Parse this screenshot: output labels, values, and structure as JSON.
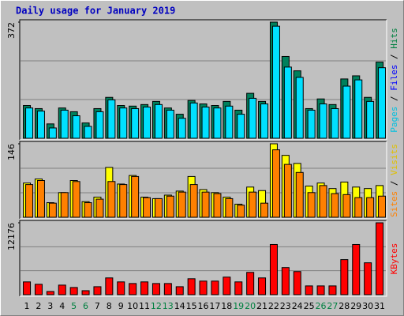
{
  "chart_data": {
    "type": "bar",
    "title": "Daily usage for January 2019",
    "categories": [
      "1",
      "2",
      "3",
      "4",
      "5",
      "6",
      "7",
      "8",
      "9",
      "10",
      "11",
      "12",
      "13",
      "14",
      "15",
      "16",
      "17",
      "18",
      "19",
      "20",
      "21",
      "22",
      "23",
      "24",
      "25",
      "26",
      "27",
      "28",
      "29",
      "30",
      "31"
    ],
    "weekend": [
      4,
      5,
      11,
      12,
      18,
      19,
      25,
      26
    ],
    "weekend_color": "#008040",
    "panels": [
      {
        "ylim": [
          0,
          372
        ],
        "yticks": [
          372
        ],
        "side_label": [
          {
            "text": "Pages",
            "color": "#00c0e0"
          },
          {
            "text": " / ",
            "color": "#000000"
          },
          {
            "text": "Files",
            "color": "#0000ff"
          },
          {
            "text": " / ",
            "color": "#000000"
          },
          {
            "text": "Hits",
            "color": "#008040"
          }
        ],
        "series": [
          {
            "name": "Hits",
            "color": "#00805c",
            "values": [
              105,
              95,
              46,
              97,
              85,
              49,
              95,
              131,
              105,
              103,
              108,
              118,
              97,
              77,
              121,
              110,
              105,
              118,
              90,
              144,
              118,
              372,
              262,
              216,
              95,
              126,
              108,
              190,
              200,
              131,
              244
            ]
          },
          {
            "name": "Pages",
            "color": "#00e0ff",
            "values": [
              97,
              87,
              33,
              90,
              72,
              38,
              85,
              123,
              97,
              95,
              100,
              108,
              90,
              64,
              113,
              100,
              97,
              103,
              77,
              128,
              110,
              359,
              228,
              195,
              90,
              110,
              95,
              167,
              187,
              118,
              226
            ]
          }
        ]
      },
      {
        "ylim": [
          0,
          146
        ],
        "yticks": [
          146
        ],
        "side_label": [
          {
            "text": "Sites",
            "color": "#ff8000"
          },
          {
            "text": " / ",
            "color": "#000000"
          },
          {
            "text": "Visits",
            "color": "#e0c000"
          }
        ],
        "series": [
          {
            "name": "Visits",
            "color": "#ffff00",
            "values": [
              68,
              76,
              29,
              49,
              73,
              31,
              40,
              99,
              66,
              83,
              40,
              37,
              44,
              52,
              81,
              55,
              49,
              40,
              26,
              60,
              53,
              146,
              123,
              107,
              62,
              68,
              57,
              70,
              60,
              57,
              63
            ]
          },
          {
            "name": "Sites",
            "color": "#ff8000",
            "values": [
              65,
              73,
              28,
              49,
              71,
              29,
              36,
              71,
              65,
              81,
              39,
              37,
              42,
              50,
              65,
              50,
              47,
              37,
              24,
              50,
              28,
              134,
              105,
              89,
              49,
              63,
              47,
              45,
              39,
              39,
              42
            ]
          }
        ]
      },
      {
        "ylim": [
          0,
          12176
        ],
        "yticks": [
          12176
        ],
        "side_label": [
          {
            "text": "KBytes",
            "color": "#ff0000"
          }
        ],
        "series": [
          {
            "name": "KBytes",
            "color": "#ff0000",
            "values": [
              2165,
              1760,
              540,
              1620,
              1215,
              675,
              1350,
              2840,
              2165,
              1890,
              2165,
              1890,
              1890,
              1350,
              2700,
              2300,
              2300,
              2975,
              2165,
              3780,
              2840,
              8500,
              4590,
              3915,
              1485,
              1485,
              1485,
              5940,
              8500,
              5400,
              12176
            ]
          }
        ]
      }
    ]
  }
}
